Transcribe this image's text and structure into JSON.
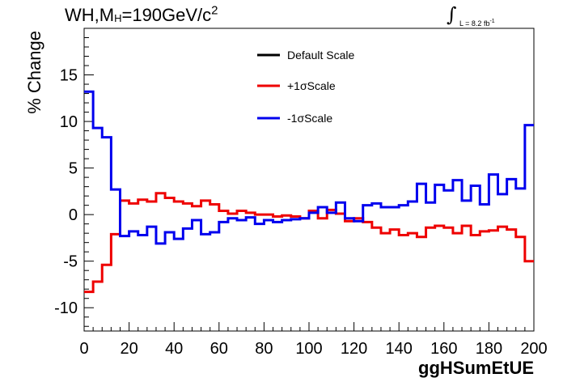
{
  "title": {
    "prefix": "WH,M",
    "sub": "H",
    "mid": "=190GeV/c",
    "sup": "2"
  },
  "lumi_label": "L = 8.2 fb",
  "lumi_exp": "-1",
  "colors": {
    "default": "#000000",
    "plus": "#ee0000",
    "minus": "#0000ee"
  },
  "chart_data": {
    "type": "line",
    "title": "WH,MH=190GeV/c2",
    "xlabel": "ggHSumEtUE",
    "ylabel": "% Change",
    "xlim": [
      0,
      200
    ],
    "ylim": [
      -12.5,
      20
    ],
    "xticks": [
      0,
      20,
      40,
      60,
      80,
      100,
      120,
      140,
      160,
      180,
      200
    ],
    "yticks": [
      -10,
      -5,
      0,
      5,
      10,
      15
    ],
    "bin_width": 4,
    "bin_edges_start": 0,
    "legend_position": "top-center",
    "series": [
      {
        "name": "Default Scale",
        "color": "#000000",
        "values": []
      },
      {
        "name": "+1σScale",
        "color": "#ee0000",
        "values": [
          -8.3,
          -7.2,
          -5.4,
          -2.1,
          1.5,
          1.2,
          1.6,
          1.4,
          2.3,
          1.8,
          1.4,
          1.2,
          0.9,
          1.5,
          1.1,
          0.4,
          0.1,
          0.4,
          0.2,
          0.0,
          0.0,
          -0.2,
          -0.1,
          -0.2,
          -0.4,
          0.4,
          -0.4,
          0.5,
          0.1,
          -0.7,
          -0.4,
          -0.8,
          -1.4,
          -2.0,
          -1.6,
          -2.2,
          -2.0,
          -2.4,
          -1.4,
          -1.2,
          -1.4,
          -2.0,
          -1.2,
          -2.2,
          -1.8,
          -1.7,
          -1.3,
          -1.6,
          -2.4,
          -5.0
        ]
      },
      {
        "name": "-1σScale",
        "color": "#0000ee",
        "values": [
          13.2,
          9.3,
          8.3,
          2.7,
          -2.3,
          -1.8,
          -2.2,
          -1.3,
          -3.1,
          -1.9,
          -2.6,
          -1.5,
          -0.6,
          -2.1,
          -1.9,
          -0.8,
          -0.4,
          -0.6,
          -0.3,
          -1.0,
          -0.6,
          -0.8,
          -0.6,
          -0.5,
          -0.4,
          0.2,
          0.8,
          0.2,
          1.3,
          -0.4,
          -0.7,
          1.0,
          1.2,
          0.8,
          0.8,
          1.0,
          1.4,
          3.3,
          1.3,
          3.2,
          2.6,
          3.7,
          1.5,
          3.1,
          1.1,
          4.3,
          2.2,
          3.8,
          2.8,
          9.6
        ]
      }
    ]
  }
}
